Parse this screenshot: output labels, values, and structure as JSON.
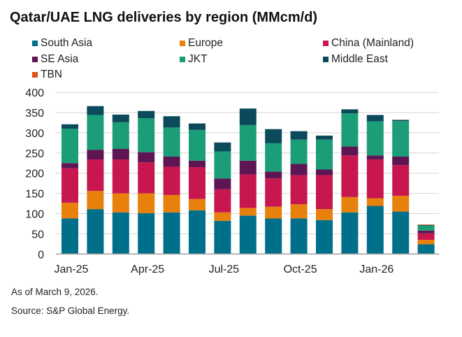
{
  "chart_data": {
    "type": "bar",
    "stacked": true,
    "title": "Qatar/UAE LNG deliveries by region (MMcm/d)",
    "xlabel": "",
    "ylabel": "",
    "ylim": [
      0,
      400
    ],
    "yticks": [
      0,
      50,
      100,
      150,
      200,
      250,
      300,
      350,
      400
    ],
    "grid": true,
    "legend_position": "top",
    "categories": [
      "Jan-25",
      "Feb-25",
      "Mar-25",
      "Apr-25",
      "May-25",
      "Jun-25",
      "Jul-25",
      "Aug-25",
      "Sep-25",
      "Oct-25",
      "Nov-25",
      "Dec-25",
      "Jan-26",
      "Feb-26",
      "Mar-26"
    ],
    "xtick_labels": [
      "Jan-25",
      "",
      "",
      "Apr-25",
      "",
      "",
      "Jul-25",
      "",
      "",
      "Oct-25",
      "",
      "",
      "Jan-26",
      "",
      ""
    ],
    "series": [
      {
        "name": "South Asia",
        "color": "#006f8a",
        "values": [
          88,
          111,
          103,
          101,
          103,
          108,
          82,
          95,
          88,
          88,
          84,
          103,
          119,
          105,
          24
        ]
      },
      {
        "name": "Europe",
        "color": "#e8800c",
        "values": [
          39,
          45,
          47,
          49,
          43,
          28,
          21,
          19,
          29,
          35,
          27,
          38,
          19,
          39,
          11
        ]
      },
      {
        "name": "China (Mainland)",
        "color": "#c8174f",
        "values": [
          85,
          78,
          84,
          77,
          70,
          79,
          57,
          83,
          70,
          72,
          84,
          103,
          96,
          76,
          16
        ]
      },
      {
        "name": "SE Asia",
        "color": "#5e1553",
        "values": [
          13,
          24,
          26,
          25,
          25,
          16,
          27,
          34,
          17,
          28,
          14,
          22,
          10,
          21,
          7
        ]
      },
      {
        "name": "JKT",
        "color": "#1b9e78",
        "values": [
          85,
          86,
          66,
          84,
          72,
          76,
          67,
          88,
          70,
          60,
          74,
          82,
          84,
          88,
          13
        ]
      },
      {
        "name": "Middle East",
        "color": "#0b4a5b",
        "values": [
          11,
          22,
          19,
          18,
          28,
          16,
          22,
          41,
          35,
          21,
          10,
          10,
          16,
          3,
          1
        ]
      },
      {
        "name": "TBN",
        "color": "#d9531a",
        "values": [
          0,
          0,
          0,
          0,
          0,
          0,
          0,
          0,
          0,
          0,
          0,
          0,
          0,
          0,
          1
        ]
      }
    ]
  },
  "footer": {
    "note": "As of March 9, 2026.",
    "source": "Source: S&P Global Energy."
  }
}
